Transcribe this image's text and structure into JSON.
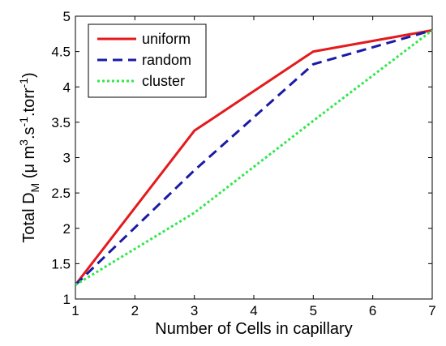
{
  "chart_data": {
    "type": "line",
    "title": "",
    "xlabel": "Number of Cells in capillary",
    "ylabel": "Total D_M (μ m^3.s^-1.torr^-1)",
    "ylabel_parts": {
      "prefix": "Total D",
      "sub": "M",
      "mid1": " (μ m",
      "sup1": "3",
      "mid2": ".s",
      "sup2": "-1",
      "mid3": ".torr",
      "sup3": "-1",
      "suffix": ")"
    },
    "xlim": [
      1,
      7
    ],
    "ylim": [
      1,
      5
    ],
    "xticks": [
      1,
      2,
      3,
      4,
      5,
      6,
      7
    ],
    "yticks": [
      1,
      1.5,
      2,
      2.5,
      3,
      3.5,
      4,
      4.5,
      5
    ],
    "ytick_labels": [
      "1",
      "1.5",
      "2",
      "2.5",
      "3",
      "3.5",
      "4",
      "4.5",
      "5"
    ],
    "grid": false,
    "legend_position": "top-left",
    "series": [
      {
        "name": "uniform",
        "color": "#e41a1c",
        "style": "solid",
        "x": [
          1,
          3,
          5,
          7
        ],
        "y": [
          1.2,
          3.38,
          4.5,
          4.8
        ]
      },
      {
        "name": "random",
        "color": "#1a1aa6",
        "style": "dashed",
        "x": [
          1,
          3,
          5,
          7
        ],
        "y": [
          1.2,
          2.82,
          4.32,
          4.8
        ]
      },
      {
        "name": "cluster",
        "color": "#2ee84a",
        "style": "dotted",
        "x": [
          1,
          3,
          5,
          7
        ],
        "y": [
          1.2,
          2.22,
          3.52,
          4.8
        ]
      }
    ]
  }
}
